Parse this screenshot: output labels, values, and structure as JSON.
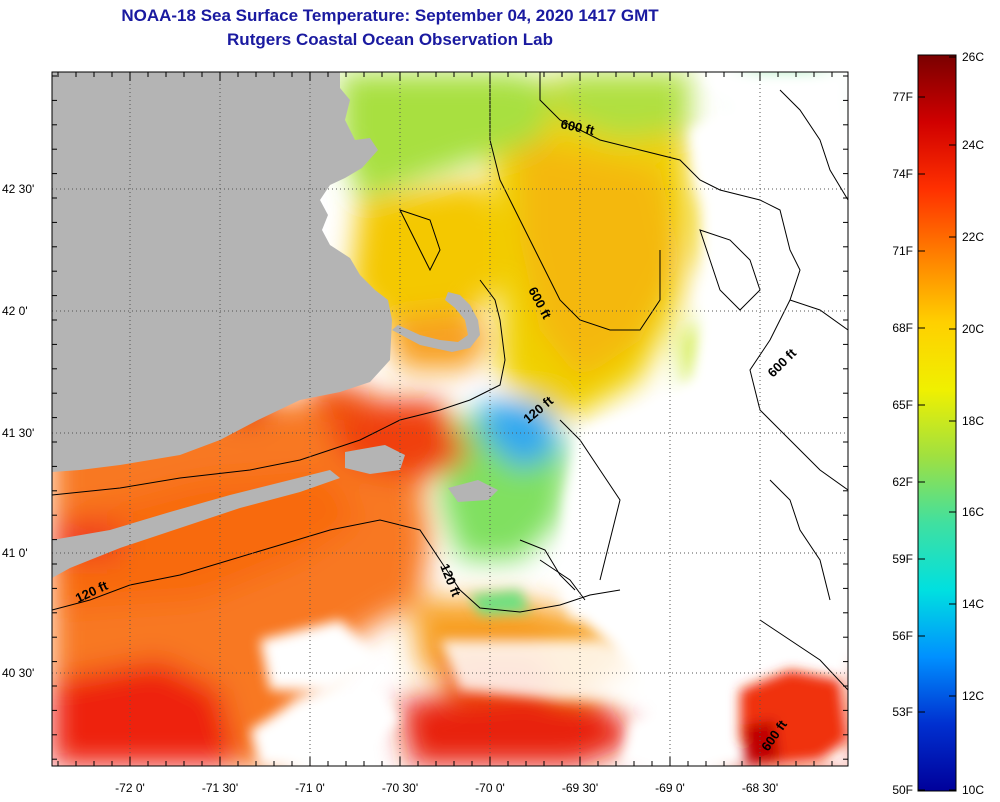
{
  "header": {
    "title": "NOAA-18 Sea Surface Temperature:  September 04, 2020 1417 GMT",
    "subtitle": "Rutgers Coastal Ocean Observation Lab"
  },
  "map": {
    "lon_ticks": [
      "-72 0'",
      "-71 30'",
      "-71 0'",
      "-70 30'",
      "-70 0'",
      "-69 30'",
      "-69 0'",
      "-68 30'"
    ],
    "lat_ticks": [
      "42 30'",
      "42 0'",
      "41 30'",
      "41 0'",
      "40 30'"
    ],
    "contour_labels": [
      {
        "text": "600 ft",
        "rot": 12
      },
      {
        "text": "600 ft",
        "rot": 62
      },
      {
        "text": "600 ft",
        "rot": -45
      },
      {
        "text": "120 ft",
        "rot": -40
      },
      {
        "text": "120 ft",
        "rot": -25
      },
      {
        "text": "120 ft",
        "rot": 68
      },
      {
        "text": "600 ft",
        "rot": -55
      }
    ],
    "colors": {
      "land": "#b4b4b4",
      "no_data": "#ffffff"
    }
  },
  "colorbar": {
    "fahrenheit": [
      "77F",
      "74F",
      "71F",
      "68F",
      "65F",
      "62F",
      "59F",
      "56F",
      "53F",
      "50F"
    ],
    "celsius": [
      "26C",
      "24C",
      "22C",
      "20C",
      "18C",
      "16C",
      "14C",
      "12C",
      "10C"
    ],
    "gradient": [
      "#7a0000",
      "#d00000",
      "#ff3000",
      "#ff8000",
      "#ffd000",
      "#f0f000",
      "#a0e040",
      "#40e0a0",
      "#00e0e0",
      "#0090ff",
      "#0030d0",
      "#00009a"
    ]
  }
}
